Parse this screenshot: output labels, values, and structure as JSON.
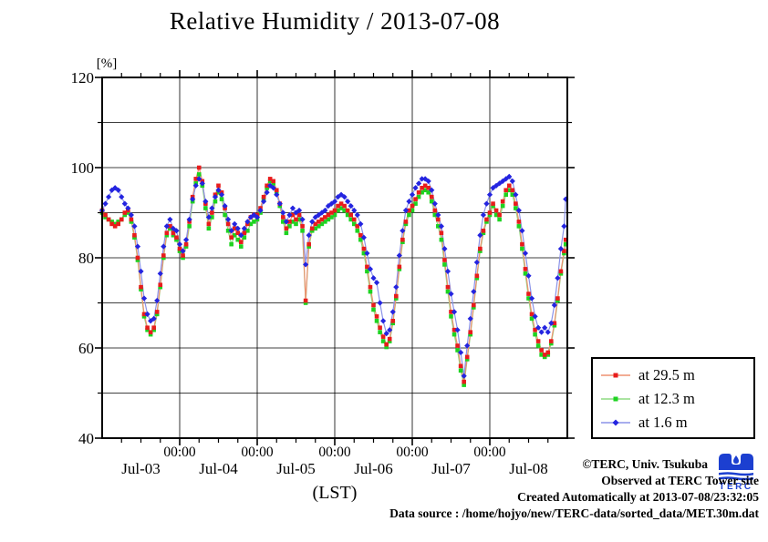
{
  "title": "Relative Humidity / 2013-07-08",
  "y_axis": {
    "unit_label": "[%]",
    "min": 40,
    "max": 120,
    "major_tick_labels": [
      120,
      100,
      80,
      60,
      40
    ],
    "grid_interval": 10
  },
  "x_axis": {
    "midnight_label": "00:00",
    "day_labels": [
      "Jul-03",
      "Jul-04",
      "Jul-05",
      "Jul-06",
      "Jul-07",
      "Jul-08"
    ],
    "axis_label": "(LST)",
    "minor_tick_hours": 6
  },
  "legend": [
    {
      "label": "at 29.5 m",
      "marker": "square",
      "marker_color": "#e81c1c",
      "line_color": "#ee9070"
    },
    {
      "label": "at 12.3 m",
      "marker": "square",
      "marker_color": "#1ed321",
      "line_color": "#8fdc82"
    },
    {
      "label": "at 1.6 m",
      "marker": "diamond",
      "marker_color": "#2424e0",
      "line_color": "#8b93e8"
    }
  ],
  "annotations": {
    "copyright": "©TERC, Univ. Tsukuba",
    "observed": "Observed at TERC Tower site",
    "created": "Created Automatically at 2013-07-08/23:32:05",
    "datasource": "Data source : /home/hojyo/new/TERC-data/sorted_data/MET.30m.dat"
  },
  "logo": {
    "text": "TERC",
    "color": "#1c3fd0"
  },
  "chart_data": {
    "type": "line",
    "title": "Relative Humidity / 2013-07-08",
    "ylabel": "[%]",
    "xlabel": "(LST)",
    "ylim": [
      40,
      120
    ],
    "grid": true,
    "legend_position": "outside-right-bottom",
    "x_unit": "hours since 2013-07-03 00:00 LST (6 days shown, Jul-03 .. Jul-08, data every ~30 min in source)",
    "x": [
      0,
      1,
      2,
      3,
      4,
      5,
      6,
      7,
      8,
      9,
      10,
      11,
      12,
      13,
      14,
      15,
      16,
      17,
      18,
      19,
      20,
      21,
      22,
      23,
      24,
      25,
      26,
      27,
      28,
      29,
      30,
      31,
      32,
      33,
      34,
      35,
      36,
      37,
      38,
      39,
      40,
      41,
      42,
      43,
      44,
      45,
      46,
      47,
      48,
      49,
      50,
      51,
      52,
      53,
      54,
      55,
      56,
      57,
      58,
      59,
      60,
      61,
      62,
      63,
      64,
      65,
      66,
      67,
      68,
      69,
      70,
      71,
      72,
      73,
      74,
      75,
      76,
      77,
      78,
      79,
      80,
      81,
      82,
      83,
      84,
      85,
      86,
      87,
      88,
      89,
      90,
      91,
      92,
      93,
      94,
      95,
      96,
      97,
      98,
      99,
      100,
      101,
      102,
      103,
      104,
      105,
      106,
      107,
      108,
      109,
      110,
      111,
      112,
      113,
      114,
      115,
      116,
      117,
      118,
      119,
      120,
      121,
      122,
      123,
      124,
      125,
      126,
      127,
      128,
      129,
      130,
      131,
      132,
      133,
      134,
      135,
      136,
      137,
      138,
      139,
      140,
      141,
      142,
      143,
      143.5
    ],
    "series": [
      {
        "name": "at 29.5 m",
        "marker": "square",
        "color": "#e81c1c",
        "line_color": "#ee9070",
        "values": [
          90.5,
          89.5,
          88.5,
          87.5,
          87,
          87.5,
          88.5,
          90,
          90.5,
          88.5,
          85,
          80,
          73.5,
          67.5,
          64.5,
          63.5,
          64.5,
          68,
          74,
          80.5,
          85.5,
          87,
          85.5,
          84.5,
          82,
          80.5,
          83,
          88,
          93.5,
          97.5,
          100,
          97,
          92,
          87.5,
          90,
          94,
          96,
          94.5,
          91,
          87.5,
          84.5,
          86.5,
          85.5,
          83.5,
          85.5,
          87.5,
          89,
          89.5,
          89.5,
          91,
          93.5,
          96,
          97.5,
          97,
          95,
          92,
          89,
          86.5,
          88,
          89.5,
          88.5,
          89.5,
          87,
          70.5,
          83,
          86.5,
          87.5,
          88,
          88.5,
          89,
          89.5,
          90,
          90.5,
          91.5,
          92,
          91.5,
          90.5,
          89.5,
          88.5,
          87,
          85,
          82,
          78,
          73.5,
          69.5,
          67,
          64.5,
          62.5,
          60.8,
          62,
          66,
          71.5,
          78,
          84,
          88,
          90.5,
          91.5,
          93,
          94.5,
          95.5,
          96,
          95.5,
          93.5,
          90.5,
          88.5,
          85.5,
          79.5,
          73.5,
          68,
          64,
          60.5,
          56,
          52.5,
          58,
          63.5,
          69.5,
          76,
          82,
          86,
          88.5,
          90,
          92,
          90.5,
          89.5,
          92.5,
          95,
          96,
          95,
          92,
          88,
          83,
          77.5,
          72,
          67.5,
          64,
          61.5,
          59.5,
          58.5,
          59,
          61.5,
          65.5,
          71,
          77,
          81.5,
          84
        ]
      },
      {
        "name": "at 12.3 m",
        "marker": "square",
        "color": "#1ed321",
        "line_color": "#8fdc82",
        "values": [
          90,
          89,
          88.5,
          88,
          87.5,
          88,
          88.5,
          89.5,
          90,
          88,
          84.5,
          79.5,
          73,
          67,
          64,
          63,
          64,
          67.5,
          73.5,
          80,
          85,
          86.5,
          85,
          84,
          81.5,
          80,
          82.5,
          87,
          92.5,
          96.5,
          98.5,
          96,
          91,
          86.5,
          89,
          92.5,
          94.5,
          93,
          89.5,
          86,
          83,
          85,
          84,
          82.5,
          84.5,
          86,
          87.5,
          88,
          88.5,
          90,
          93,
          95.5,
          97,
          96.5,
          94.5,
          91.5,
          88,
          85.5,
          87,
          88,
          87.5,
          88.5,
          86,
          70,
          82.5,
          86,
          86.5,
          87,
          87.5,
          88,
          88.5,
          89,
          89.5,
          90.5,
          91,
          90.5,
          89.5,
          88.5,
          87.5,
          86,
          84,
          81,
          77,
          72.5,
          68.5,
          66,
          63.5,
          61.5,
          60.2,
          61.5,
          65.5,
          71,
          77.5,
          83.5,
          87.5,
          89.5,
          90.5,
          92,
          93.5,
          94.5,
          95,
          94.5,
          92.5,
          89.5,
          87,
          84,
          78.5,
          72.5,
          67,
          63,
          59.5,
          55,
          51.8,
          57.5,
          63,
          69,
          75.5,
          81.5,
          85.5,
          88,
          89.5,
          91.5,
          89.5,
          88.5,
          91.5,
          94,
          95,
          94,
          91,
          87,
          82,
          76.5,
          71,
          66.5,
          63,
          60.5,
          58.5,
          58,
          58.5,
          61,
          65,
          70.5,
          76.5,
          81,
          83
        ]
      },
      {
        "name": "at 1.6 m",
        "marker": "diamond",
        "color": "#2424e0",
        "line_color": "#8b93e8",
        "values": [
          90.5,
          92,
          93.5,
          95,
          95.5,
          95,
          93.5,
          92,
          91,
          89.5,
          87,
          82.5,
          77,
          71,
          67.5,
          66,
          66.5,
          70.5,
          76.5,
          82.5,
          87,
          88.5,
          86.5,
          86,
          83,
          81.5,
          84,
          88.5,
          93,
          96,
          97.5,
          96.5,
          92.5,
          89,
          91,
          93.5,
          95,
          94,
          91.5,
          88.5,
          86,
          87.5,
          86.5,
          85,
          86.5,
          88,
          89,
          89.5,
          89,
          90.5,
          92.5,
          94.5,
          96,
          95.5,
          94,
          92,
          90,
          88,
          89.5,
          91,
          90,
          90.5,
          88.5,
          78.5,
          85,
          88,
          89,
          89.5,
          90,
          90.5,
          91.5,
          92,
          92.5,
          93.5,
          94,
          93.5,
          92.5,
          91.5,
          90.5,
          89.5,
          87.5,
          84.5,
          81,
          77.5,
          75.5,
          74.5,
          70,
          66,
          63.2,
          64,
          68,
          73.5,
          80.5,
          86,
          90.5,
          92.5,
          94,
          95.5,
          96.5,
          97.5,
          97.5,
          97,
          95,
          92,
          89.5,
          87,
          82,
          77,
          72,
          68,
          64,
          59,
          53.8,
          60.5,
          66.5,
          72.5,
          79,
          85,
          89.5,
          92,
          94,
          95.5,
          96,
          96.5,
          97,
          97.5,
          98,
          97,
          94,
          90.5,
          86,
          81,
          76,
          71,
          67,
          64.5,
          63.5,
          64.5,
          63.5,
          65.5,
          69.5,
          75.5,
          82,
          87,
          93
        ]
      }
    ]
  }
}
